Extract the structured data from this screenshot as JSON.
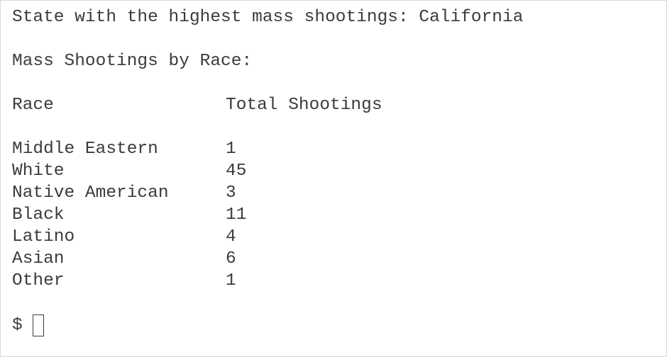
{
  "summary": {
    "state_line": "State with the highest mass shootings: California",
    "section_title": "Mass Shootings by Race:"
  },
  "table": {
    "headers": {
      "race": "Race",
      "total": "Total Shootings"
    },
    "rows": [
      {
        "race": "Middle Eastern",
        "total": "1"
      },
      {
        "race": "White",
        "total": "45"
      },
      {
        "race": "Native American",
        "total": "3"
      },
      {
        "race": "Black",
        "total": "11"
      },
      {
        "race": "Latino",
        "total": "4"
      },
      {
        "race": "Asian",
        "total": "6"
      },
      {
        "race": "Other",
        "total": "1"
      }
    ]
  },
  "prompt": {
    "symbol": "$"
  },
  "colors": {
    "background": "#ffffff",
    "text": "#3b3b3b",
    "border": "#d8d8d8"
  }
}
